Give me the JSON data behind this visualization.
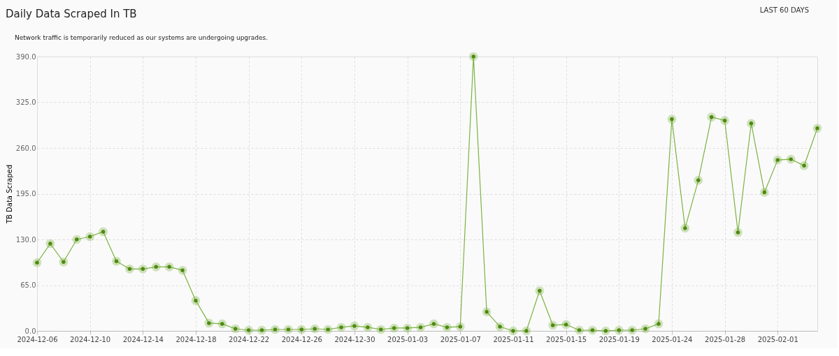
{
  "chart_data": {
    "type": "line",
    "title": "Daily Data Scraped In TB",
    "ylabel": "TB Data Scraped",
    "annotations": [
      "Network traffic is temporarily reduced as our systems are undergoing upgrades.",
      "LAST 60 DAYS"
    ],
    "categories": [
      "2024-12-06",
      null,
      null,
      null,
      "2024-12-10",
      null,
      null,
      null,
      "2024-12-14",
      null,
      null,
      null,
      "2024-12-18",
      null,
      null,
      null,
      "2024-12-22",
      null,
      null,
      null,
      "2024-12-26",
      null,
      null,
      null,
      "2024-12-30",
      null,
      null,
      null,
      "2025-01-03",
      null,
      null,
      null,
      "2025-01-07",
      null,
      null,
      null,
      "2025-01-11",
      null,
      null,
      null,
      "2025-01-15",
      null,
      null,
      null,
      "2025-01-19",
      null,
      null,
      null,
      "2025-01-24",
      null,
      null,
      null,
      "2025-01-28",
      null,
      null,
      null,
      "2025-02-01",
      null,
      null,
      null
    ],
    "series": [
      {
        "color": "#7cb342",
        "values": [
          97,
          124,
          98,
          130,
          134,
          141,
          99,
          88,
          88,
          91,
          91,
          86,
          43,
          11,
          10,
          3,
          1,
          1,
          2,
          2,
          2,
          3,
          2,
          5,
          7,
          5,
          2,
          4,
          4,
          5,
          10,
          5,
          6,
          390,
          27,
          6,
          0,
          0,
          57,
          8,
          9,
          1,
          1,
          0,
          1,
          1,
          3,
          10,
          301,
          146,
          214,
          304,
          299,
          140,
          295,
          197,
          243,
          244,
          235,
          288
        ]
      }
    ],
    "ylim": [
      0,
      390
    ],
    "yticks": [
      {
        "value": 0,
        "label": "0.0"
      },
      {
        "value": 65,
        "label": "65.0"
      },
      {
        "value": 130,
        "label": "130.0"
      },
      {
        "value": 195,
        "label": "195.0"
      },
      {
        "value": 260,
        "label": "260.0"
      },
      {
        "value": 325,
        "label": "325.0"
      },
      {
        "value": 390,
        "label": "390.0"
      }
    ],
    "grid": true,
    "marker": "circle",
    "line_style": "solid"
  }
}
